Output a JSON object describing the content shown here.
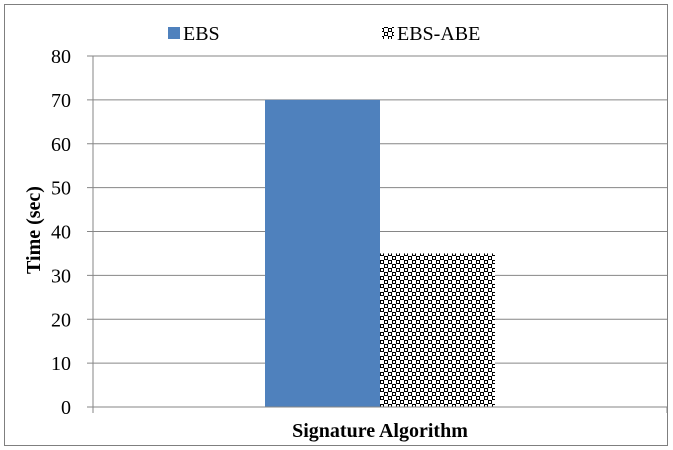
{
  "chart_data": {
    "type": "bar",
    "title": "",
    "xlabel": "Signature Algorithm",
    "ylabel": "Time (sec)",
    "categories": [
      ""
    ],
    "ylim": [
      0,
      80
    ],
    "yticks": [
      0,
      10,
      20,
      30,
      40,
      50,
      60,
      70,
      80
    ],
    "grid": true,
    "legend_position": "top",
    "series": [
      {
        "name": "EBS",
        "values": [
          70
        ],
        "color": "#4f81bd",
        "pattern": "solid"
      },
      {
        "name": "EBS-ABE",
        "values": [
          35
        ],
        "color": "#000000",
        "pattern": "checker-dots"
      }
    ]
  }
}
